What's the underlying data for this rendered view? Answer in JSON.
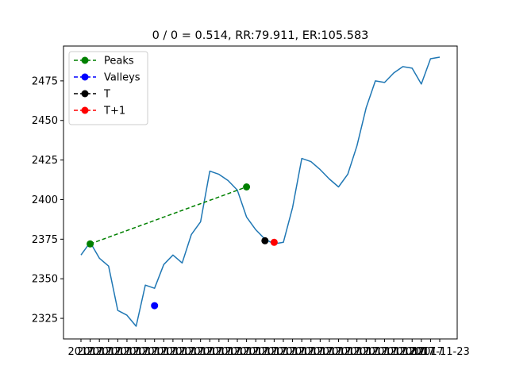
{
  "chart_data": {
    "type": "line",
    "title": "0 / 0 = 0.514, RR:79.911, ER:105.583",
    "xlabel": "",
    "ylabel": "",
    "ylim": [
      2312,
      2497
    ],
    "yticks": [
      2325,
      2350,
      2375,
      2400,
      2425,
      2450,
      2475
    ],
    "x_label_prefix": "2017",
    "x_label_last": "2017-11-23",
    "x_count": 40,
    "series": [
      {
        "color": "#1f77b4",
        "values": [
          2365,
          2373,
          2363,
          2358,
          2330,
          2327,
          2320,
          2346,
          2344,
          2359,
          2365,
          2360,
          2378,
          2386,
          2418,
          2416,
          2412,
          2406,
          2389,
          2381,
          2375,
          2372,
          2373,
          2395,
          2426,
          2424,
          2419,
          2413,
          2408,
          2416,
          2434,
          2458,
          2475,
          2474,
          2480,
          2484,
          2483,
          2473,
          2489,
          2490
        ]
      }
    ],
    "overlays": [
      {
        "name": "Peaks",
        "color": "#008000",
        "style": "dashed",
        "marker": "circle",
        "points": [
          [
            1,
            2372
          ],
          [
            18,
            2408
          ]
        ]
      },
      {
        "name": "Valleys",
        "color": "#0000ff",
        "style": "dashed",
        "marker": "circle",
        "points": [
          [
            8,
            2333
          ]
        ]
      },
      {
        "name": "T",
        "color": "#000000",
        "style": "dashed",
        "marker": "circle",
        "points": [
          [
            20,
            2374
          ]
        ]
      },
      {
        "name": "T+1",
        "color": "#ff0000",
        "style": "dashed",
        "marker": "circle",
        "points": [
          [
            21,
            2373
          ]
        ]
      }
    ],
    "legend": {
      "position": "top-left",
      "entries": [
        "Peaks",
        "Valleys",
        "T",
        "T+1"
      ]
    },
    "grid": false
  }
}
